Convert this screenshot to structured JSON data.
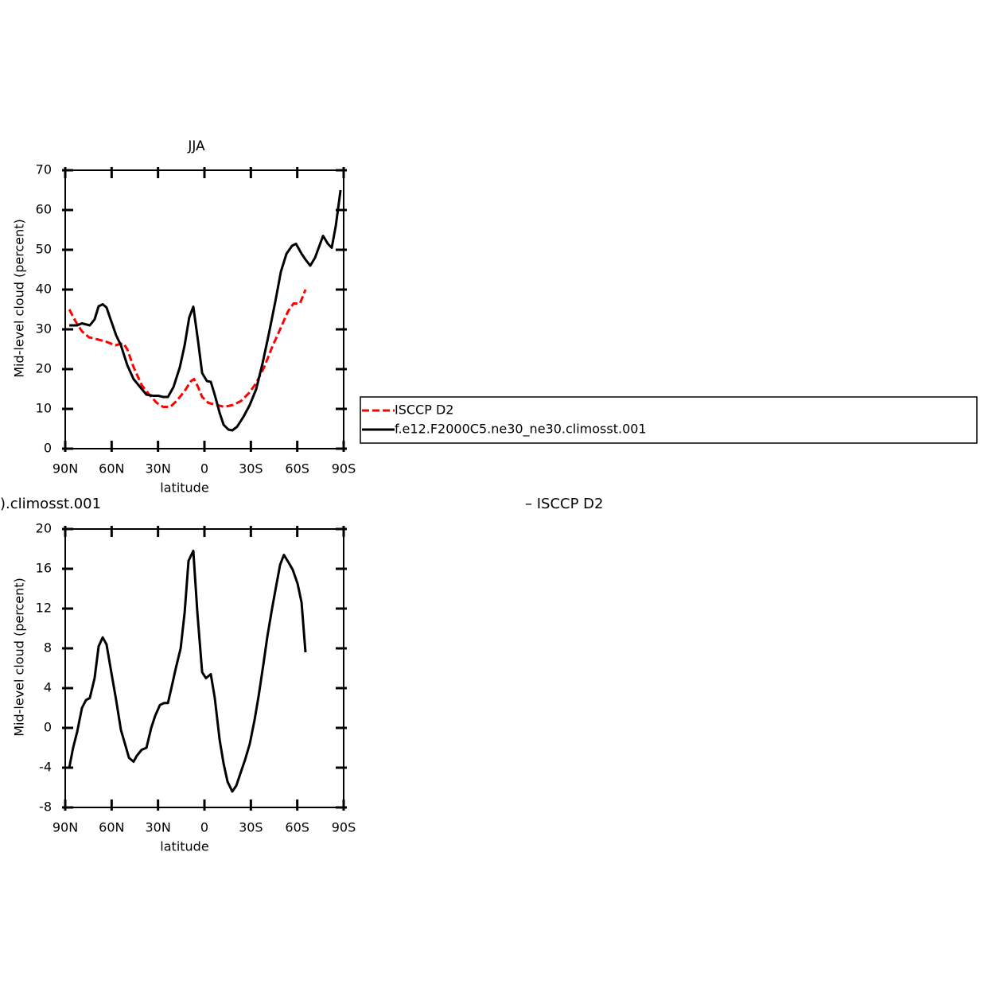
{
  "chart_data": [
    {
      "type": "line",
      "title": "JJA",
      "xlabel": "latitude",
      "ylabel": "Mid-level cloud (percent)",
      "xlim": [
        90,
        -90
      ],
      "xticks": [
        {
          "value": 90,
          "label": "90N"
        },
        {
          "value": 60,
          "label": "60N"
        },
        {
          "value": 30,
          "label": "30N"
        },
        0,
        {
          "value": -30,
          "label": "30S"
        },
        {
          "value": -60,
          "label": "60S"
        },
        {
          "value": -90,
          "label": "90S"
        }
      ],
      "ylim": [
        0,
        70
      ],
      "yticks": [
        0,
        10,
        20,
        30,
        40,
        50,
        60,
        70
      ],
      "legend": "right",
      "series": [
        {
          "name": "ISCCP D2",
          "color": "#ff0000",
          "linestyle": "dashed",
          "x": [
            87.4,
            83.3,
            79.2,
            74.6,
            69.4,
            64.3,
            57.6,
            52.5,
            49.9,
            45.8,
            40.6,
            35.5,
            30.8,
            26.7,
            22.1,
            18,
            12.8,
            8.7,
            6.7,
            4.1,
            1.5,
            -2.6,
            -7.7,
            -12.9,
            -18.5,
            -23.7,
            -28.8,
            -33.5,
            -38.6,
            -43.7,
            -48.9,
            -54,
            -57.6,
            -61.7,
            -63.3,
            -65.3
          ],
          "values": [
            35,
            32,
            29.5,
            28,
            27.5,
            27,
            26,
            26.5,
            25,
            20.5,
            16,
            13.5,
            11.5,
            10.5,
            10.5,
            12,
            14.5,
            17,
            17.5,
            15.5,
            13,
            11.5,
            11,
            10.5,
            11,
            12,
            14,
            16.5,
            20.5,
            25.5,
            30,
            34.5,
            36.5,
            36.5,
            38,
            40
          ]
        },
        {
          "name": "f.e12.F2000C5.ne30_ne30.climosst.001",
          "color": "#000000",
          "linestyle": "solid",
          "x": [
            87.4,
            82.3,
            79.2,
            74.1,
            71,
            68.4,
            65.8,
            63.3,
            60.2,
            57.1,
            54,
            49.9,
            45.8,
            41.6,
            37.5,
            33.4,
            29.8,
            26.7,
            23.6,
            20,
            15.9,
            12.8,
            9.8,
            7.2,
            4.1,
            1.5,
            -1.6,
            -4.1,
            -6.7,
            -9.8,
            -12.4,
            -15.5,
            -18,
            -21.1,
            -25.2,
            -29.3,
            -33.5,
            -37.6,
            -41.7,
            -45.8,
            -49.4,
            -53,
            -56.6,
            -59.2,
            -62.8,
            -65.4,
            -68.4,
            -71.5,
            -76.7,
            -79.8,
            -82.3,
            -84.9,
            -88
          ],
          "values": [
            31,
            31,
            31.5,
            31,
            32.5,
            35.8,
            36.3,
            35.5,
            32,
            28.5,
            26,
            21,
            17.5,
            15.5,
            13.6,
            13.3,
            13.3,
            13,
            13,
            15.5,
            20.5,
            26,
            33,
            35.7,
            27,
            19,
            17,
            16.8,
            13.5,
            9,
            6,
            4.8,
            4.6,
            5.5,
            8,
            11,
            15,
            21.5,
            29,
            37,
            44.5,
            49,
            51,
            51.5,
            49,
            47.5,
            46,
            48,
            53.5,
            51.5,
            50.5,
            56,
            65
          ]
        }
      ]
    },
    {
      "type": "line",
      "title_left": ").climosst.001",
      "title_right": "– ISCCP D2",
      "xlabel": "latitude",
      "ylabel": "Mid-level cloud (percent)",
      "xlim": [
        90,
        -90
      ],
      "xticks": [
        {
          "value": 90,
          "label": "90N"
        },
        {
          "value": 60,
          "label": "60N"
        },
        {
          "value": 30,
          "label": "30N"
        },
        0,
        {
          "value": -30,
          "label": "30S"
        },
        {
          "value": -60,
          "label": "60S"
        },
        {
          "value": -90,
          "label": "90S"
        }
      ],
      "ylim": [
        -8,
        20
      ],
      "yticks": [
        -8,
        -4,
        0,
        4,
        8,
        12,
        16,
        20
      ],
      "series": [
        {
          "color": "#000000",
          "linestyle": "solid",
          "x": [
            87.4,
            84.9,
            82.3,
            79.2,
            76.6,
            74.1,
            71,
            68.4,
            65.8,
            63.3,
            60.2,
            57.1,
            54,
            51.4,
            48.8,
            45.8,
            43.7,
            40.6,
            37.5,
            34.4,
            31.9,
            28.8,
            26.2,
            23.6,
            21.1,
            18.5,
            15.4,
            12.8,
            10.3,
            7.2,
            4.6,
            1.5,
            -1,
            -4.1,
            -6.7,
            -9.8,
            -12.4,
            -14.9,
            -18,
            -20.6,
            -23.2,
            -26.3,
            -29.3,
            -32.4,
            -35,
            -38.1,
            -40.7,
            -43.7,
            -46.3,
            -48.9,
            -51.4,
            -54.5,
            -57.1,
            -60.2,
            -62.8,
            -65.3
          ],
          "values": [
            -4,
            -2,
            -0.4,
            2,
            2.8,
            3,
            5,
            8.2,
            9.1,
            8.4,
            5.6,
            2.8,
            -0.2,
            -1.6,
            -3,
            -3.4,
            -2.8,
            -2.2,
            -2,
            0,
            1.2,
            2.3,
            2.5,
            2.5,
            4.2,
            6,
            8,
            11.6,
            16.8,
            17.8,
            11.6,
            5.6,
            5,
            5.4,
            3,
            -1.2,
            -3.6,
            -5.4,
            -6.4,
            -5.8,
            -4.6,
            -3.2,
            -1.6,
            0.8,
            3.2,
            6.4,
            9.2,
            12,
            14.2,
            16.4,
            17.4,
            16.6,
            15.9,
            14.5,
            12.6,
            7.6
          ]
        }
      ]
    }
  ]
}
